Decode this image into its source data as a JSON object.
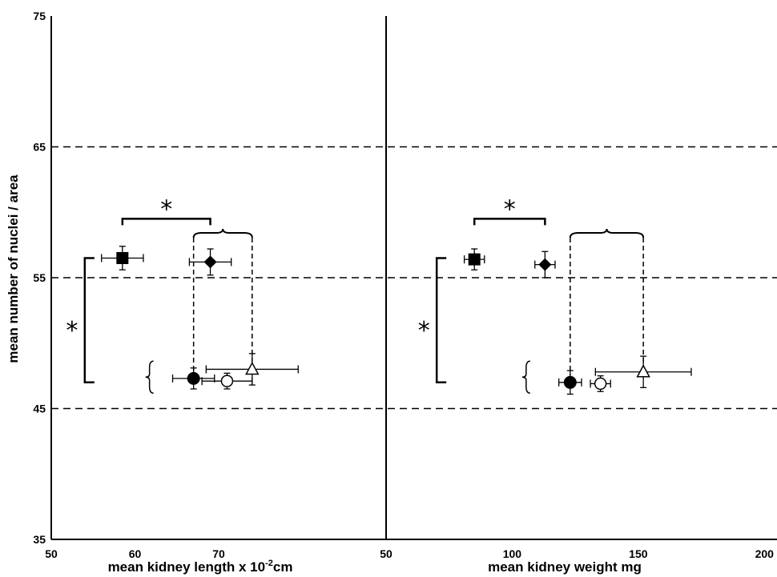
{
  "chart_data": [
    {
      "type": "scatter",
      "panel": "left",
      "xlabel": "mean kidney length x 10",
      "xlabel_sup": "-2",
      "xlabel_unit": "cm",
      "ylabel": "mean number of nuclei / area",
      "xlim": [
        50,
        90
      ],
      "ylim": [
        35,
        75
      ],
      "x_ticks": [
        "50",
        "60",
        "70"
      ],
      "y_ticks": [
        "35",
        "45",
        "55",
        "65",
        "75"
      ],
      "reference_lines_y": [
        45,
        55,
        65
      ],
      "series": [
        {
          "marker": "filled-square",
          "x": 58.5,
          "y": 56.5,
          "xerr": 2.5,
          "yerr": 0.9
        },
        {
          "marker": "filled-diamond",
          "x": 69,
          "y": 56.2,
          "xerr": 2.5,
          "yerr": 1.0
        },
        {
          "marker": "filled-circle",
          "x": 67,
          "y": 47.3,
          "xerr": 2.5,
          "yerr": 0.8
        },
        {
          "marker": "open-circle",
          "x": 71,
          "y": 47.1,
          "xerr": 3.0,
          "yerr": 0.6
        },
        {
          "marker": "open-triangle",
          "x": 74,
          "y": 48.0,
          "xerr": 5.5,
          "yerr": 1.2
        }
      ],
      "annotations": [
        "*",
        "*"
      ]
    },
    {
      "type": "scatter",
      "panel": "right",
      "xlabel": "mean kidney weight mg",
      "xlim": [
        50,
        205
      ],
      "x_ticks": [
        "50",
        "100",
        "150",
        "200"
      ],
      "ylim": [
        35,
        75
      ],
      "reference_lines_y": [
        45,
        55,
        65
      ],
      "series": [
        {
          "marker": "filled-square",
          "x": 85,
          "y": 56.4,
          "xerr": 4,
          "yerr": 0.8
        },
        {
          "marker": "filled-diamond",
          "x": 113,
          "y": 56.0,
          "xerr": 4,
          "yerr": 1.0
        },
        {
          "marker": "filled-circle",
          "x": 123,
          "y": 47.0,
          "xerr": 4.5,
          "yerr": 0.9
        },
        {
          "marker": "open-circle",
          "x": 135,
          "y": 46.9,
          "xerr": 4,
          "yerr": 0.6
        },
        {
          "marker": "open-triangle",
          "x": 152,
          "y": 47.8,
          "xerr": 19,
          "yerr": 1.2
        }
      ],
      "annotations": [
        "*",
        "*"
      ]
    }
  ]
}
